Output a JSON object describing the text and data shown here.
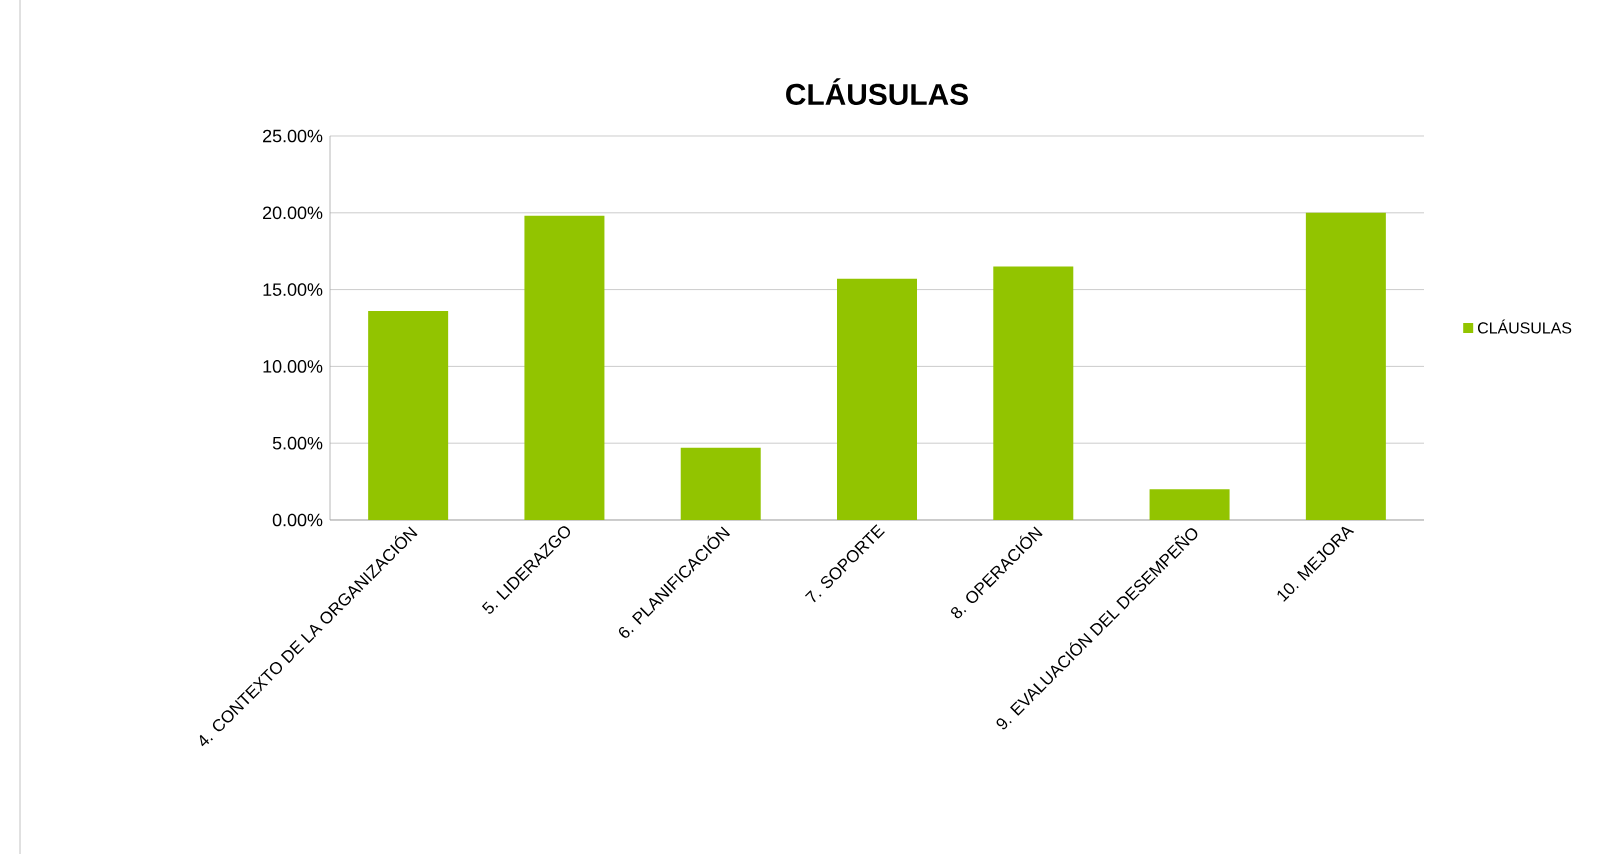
{
  "chart_data": {
    "type": "bar",
    "title": "CLÁUSULAS",
    "categories": [
      "4. CONTEXTO DE LA ORGANIZACIÓN",
      "5. LIDERAZGO",
      "6. PLANIFICACIÓN",
      "7. SOPORTE",
      "8. OPERACIÓN",
      "9. EVALUACIÓN DEL DESEMPEÑO",
      "10. MEJORA"
    ],
    "series": [
      {
        "name": "CLÁUSULAS",
        "color": "#92c400",
        "values": [
          13.6,
          19.8,
          4.7,
          15.7,
          16.5,
          2.0,
          20.0
        ]
      }
    ],
    "ylim": [
      0,
      25
    ],
    "yticks": [
      {
        "value": 0,
        "label": "0.00%"
      },
      {
        "value": 5,
        "label": "5.00%"
      },
      {
        "value": 10,
        "label": "10.00%"
      },
      {
        "value": 15,
        "label": "15.00%"
      },
      {
        "value": 20,
        "label": "20.00%"
      },
      {
        "value": 25,
        "label": "25.00%"
      }
    ],
    "grid": "y",
    "legend": "right"
  }
}
